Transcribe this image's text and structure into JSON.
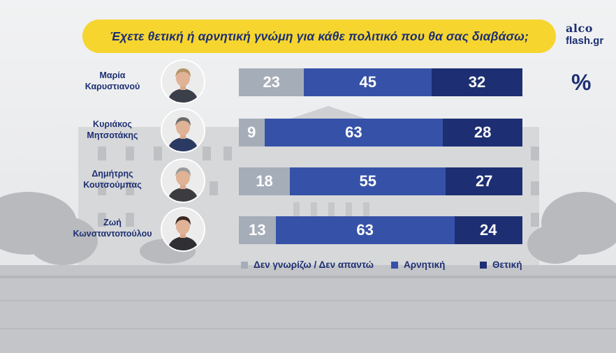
{
  "title": "Έχετε θετική ή αρνητική γνώμη για κάθε πολιτικό που θα σας διαβάσω;",
  "logo": {
    "line1": "alco",
    "line2": "flash.gr"
  },
  "unit": "%",
  "colors": {
    "title_bg": "#f6d52f",
    "text": "#1d2f72",
    "dk": "#a5adb9",
    "negative": "#3652a8",
    "positive": "#1d2f72"
  },
  "avatar_icons": [
    "person-photo-icon",
    "person-photo-icon",
    "person-photo-icon",
    "person-photo-icon"
  ],
  "chart_data": {
    "type": "bar",
    "orientation": "horizontal",
    "stacked": true,
    "categories": [
      [
        "Μαρία",
        "Καρυστιανού"
      ],
      [
        "Κυριάκος",
        "Μητσοτάκης"
      ],
      [
        "Δημήτρης",
        "Κουτσούμπας"
      ],
      [
        "Ζωή",
        "Κωνσταντοπούλου"
      ]
    ],
    "series": [
      {
        "name": "Δεν γνωρίζω / Δεν απαντώ",
        "values": [
          23,
          9,
          18,
          13
        ],
        "color": "#a5adb9"
      },
      {
        "name": "Αρνητική",
        "values": [
          45,
          63,
          55,
          63
        ],
        "color": "#3652a8"
      },
      {
        "name": "Θετική",
        "values": [
          32,
          28,
          27,
          24
        ],
        "color": "#1d2f72"
      }
    ],
    "xlim": [
      0,
      100
    ],
    "legend": "bottom"
  }
}
